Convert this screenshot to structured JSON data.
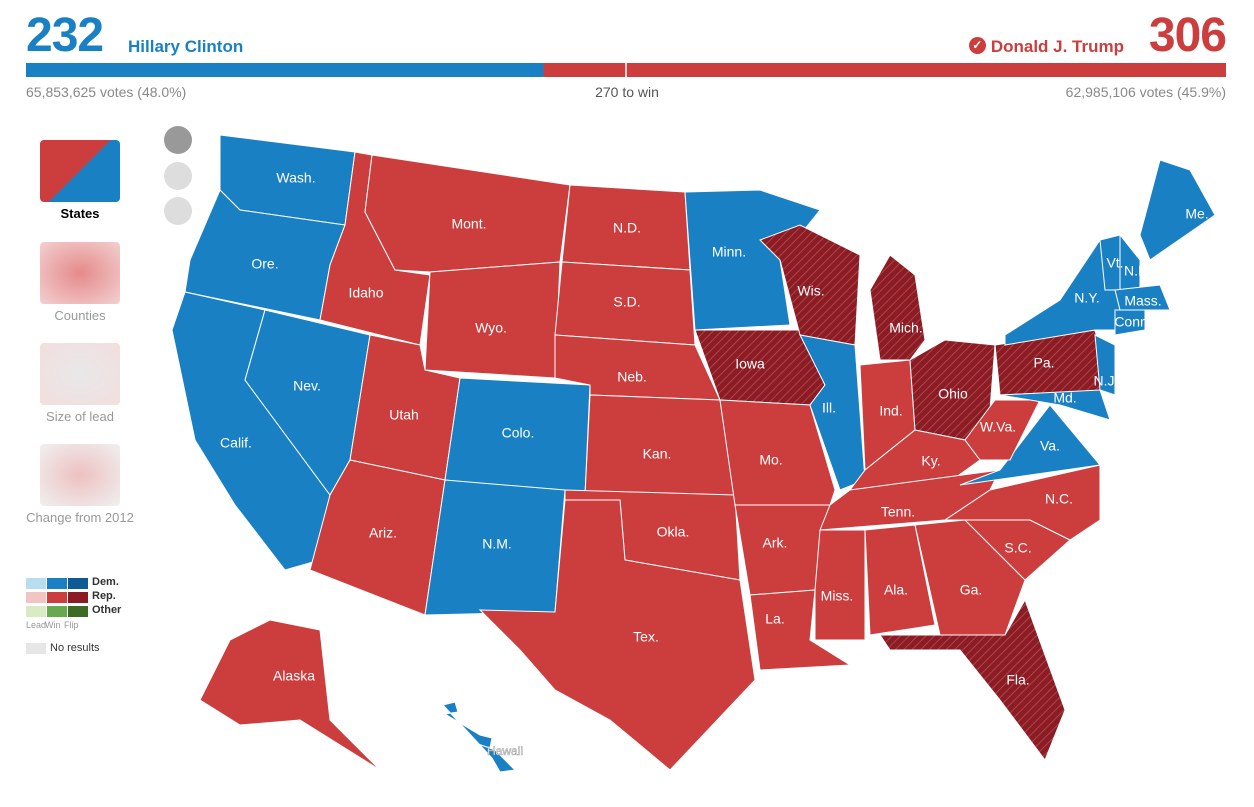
{
  "header": {
    "dem": {
      "electoral": 232,
      "name": "Hillary Clinton",
      "popular": "65,853,625 votes (48.0%)",
      "color": "#1a80c4"
    },
    "rep": {
      "electoral": 306,
      "name": "Donald J. Trump",
      "popular": "62,985,106 votes (45.9%)",
      "color": "#cc3d3d"
    },
    "threshold": "270 to win"
  },
  "views": [
    "States",
    "Counties",
    "Size of lead",
    "Change from 2012"
  ],
  "legend": {
    "parties": [
      "Dem.",
      "Rep.",
      "Other"
    ],
    "kinds": [
      "Lead",
      "Win",
      "Flip"
    ],
    "none": "No results"
  },
  "states": [
    {
      "label": "Wash.",
      "party": "dem"
    },
    {
      "label": "Ore.",
      "party": "dem"
    },
    {
      "label": "Calif.",
      "party": "dem"
    },
    {
      "label": "Nev.",
      "party": "dem"
    },
    {
      "label": "Idaho",
      "party": "rep"
    },
    {
      "label": "Mont.",
      "party": "rep"
    },
    {
      "label": "Wyo.",
      "party": "rep"
    },
    {
      "label": "Utah",
      "party": "rep"
    },
    {
      "label": "Colo.",
      "party": "dem"
    },
    {
      "label": "Ariz.",
      "party": "rep"
    },
    {
      "label": "N.M.",
      "party": "dem"
    },
    {
      "label": "N.D.",
      "party": "rep"
    },
    {
      "label": "S.D.",
      "party": "rep"
    },
    {
      "label": "Neb.",
      "party": "rep"
    },
    {
      "label": "Kan.",
      "party": "rep"
    },
    {
      "label": "Okla.",
      "party": "rep"
    },
    {
      "label": "Tex.",
      "party": "rep"
    },
    {
      "label": "Minn.",
      "party": "dem"
    },
    {
      "label": "Iowa",
      "party": "rep",
      "flip": true
    },
    {
      "label": "Mo.",
      "party": "rep"
    },
    {
      "label": "Ark.",
      "party": "rep"
    },
    {
      "label": "La.",
      "party": "rep"
    },
    {
      "label": "Wis.",
      "party": "rep",
      "flip": true
    },
    {
      "label": "Ill.",
      "party": "dem"
    },
    {
      "label": "Mich.",
      "party": "rep",
      "flip": true
    },
    {
      "label": "Ind.",
      "party": "rep"
    },
    {
      "label": "Ohio",
      "party": "rep",
      "flip": true
    },
    {
      "label": "Ky.",
      "party": "rep"
    },
    {
      "label": "Tenn.",
      "party": "rep"
    },
    {
      "label": "Miss.",
      "party": "rep"
    },
    {
      "label": "Ala.",
      "party": "rep"
    },
    {
      "label": "Ga.",
      "party": "rep"
    },
    {
      "label": "Fla.",
      "party": "rep",
      "flip": true
    },
    {
      "label": "S.C.",
      "party": "rep"
    },
    {
      "label": "N.C.",
      "party": "rep"
    },
    {
      "label": "Va.",
      "party": "dem"
    },
    {
      "label": "W.Va.",
      "party": "rep"
    },
    {
      "label": "Pa.",
      "party": "rep",
      "flip": true
    },
    {
      "label": "N.Y.",
      "party": "dem"
    },
    {
      "label": "N.J.",
      "party": "dem"
    },
    {
      "label": "Md.",
      "party": "dem"
    },
    {
      "label": "Vt.",
      "party": "dem"
    },
    {
      "label": "N.H.",
      "party": "dem"
    },
    {
      "label": "Me.",
      "party": "dem"
    },
    {
      "label": "Mass.",
      "party": "dem"
    },
    {
      "label": "Conn.",
      "party": "dem"
    },
    {
      "label": "Alaska",
      "party": "rep"
    },
    {
      "label": "Hawaii",
      "party": "dem"
    }
  ]
}
